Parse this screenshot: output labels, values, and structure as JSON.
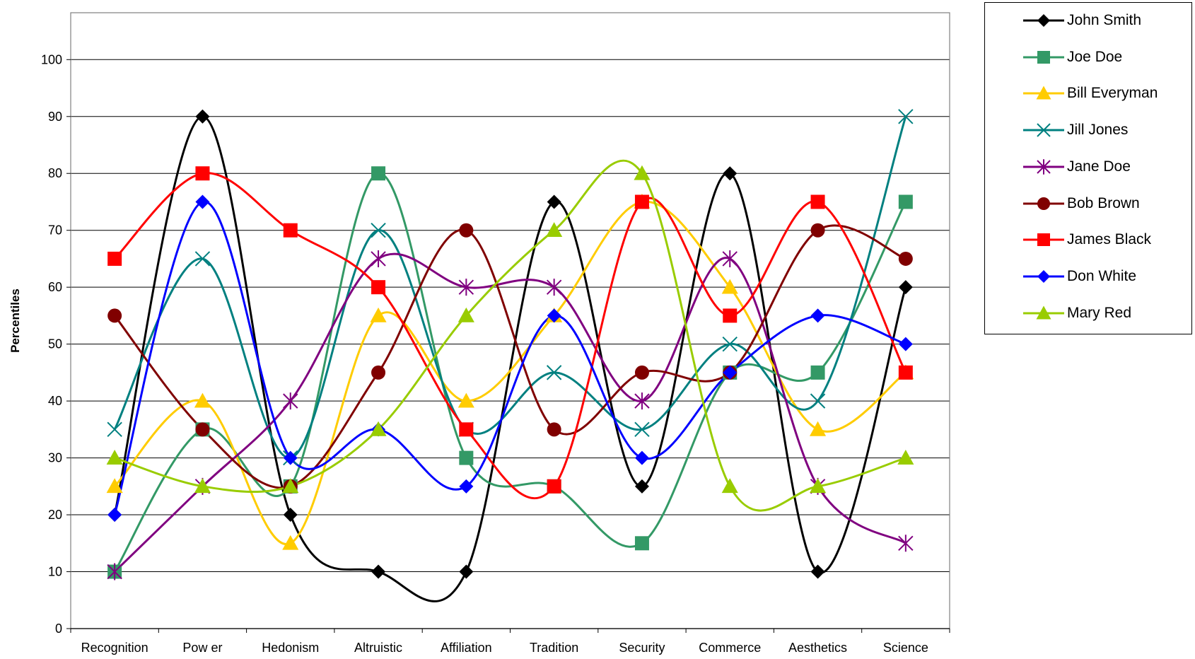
{
  "chart_data": {
    "type": "line",
    "smoothed": true,
    "title": "",
    "xlabel": "",
    "ylabel": "Percentiles",
    "ylim": [
      0,
      100
    ],
    "yticks": [
      0,
      10,
      20,
      30,
      40,
      50,
      60,
      70,
      80,
      90,
      100
    ],
    "grid": "horizontal",
    "legend_position": "top-right",
    "categories": [
      "Recognition",
      "Pow er",
      "Hedonism",
      "Altruistic",
      "Affiliation",
      "Tradition",
      "Security",
      "Commerce",
      "Aesthetics",
      "Science"
    ],
    "series": [
      {
        "name": "John Smith",
        "color": "#000000",
        "marker": "diamond",
        "values": [
          20,
          90,
          20,
          10,
          10,
          75,
          25,
          80,
          10,
          60
        ]
      },
      {
        "name": "Joe Doe",
        "color": "#339966",
        "marker": "square",
        "values": [
          10,
          35,
          25,
          80,
          30,
          25,
          15,
          45,
          45,
          75
        ]
      },
      {
        "name": "Bill Everyman",
        "color": "#ffcc00",
        "marker": "triangle",
        "values": [
          25,
          40,
          15,
          55,
          40,
          55,
          75,
          60,
          35,
          45
        ]
      },
      {
        "name": "Jill Jones",
        "color": "#008080",
        "marker": "x",
        "values": [
          35,
          65,
          30,
          70,
          35,
          45,
          35,
          50,
          40,
          90
        ]
      },
      {
        "name": "Jane Doe",
        "color": "#800080",
        "marker": "star",
        "values": [
          10,
          25,
          40,
          65,
          60,
          60,
          40,
          65,
          25,
          15
        ]
      },
      {
        "name": "Bob Brown",
        "color": "#800000",
        "marker": "circle",
        "values": [
          55,
          35,
          25,
          45,
          70,
          35,
          45,
          45,
          70,
          65
        ]
      },
      {
        "name": "James Black",
        "color": "#ff0000",
        "marker": "square",
        "values": [
          65,
          80,
          70,
          60,
          35,
          25,
          75,
          55,
          75,
          45
        ]
      },
      {
        "name": "Don White",
        "color": "#0000ff",
        "marker": "diamond",
        "values": [
          20,
          75,
          30,
          35,
          25,
          55,
          30,
          45,
          55,
          50
        ]
      },
      {
        "name": "Mary Red",
        "color": "#99cc00",
        "marker": "triangle",
        "values": [
          30,
          25,
          25,
          35,
          55,
          70,
          80,
          25,
          25,
          30
        ]
      }
    ]
  }
}
